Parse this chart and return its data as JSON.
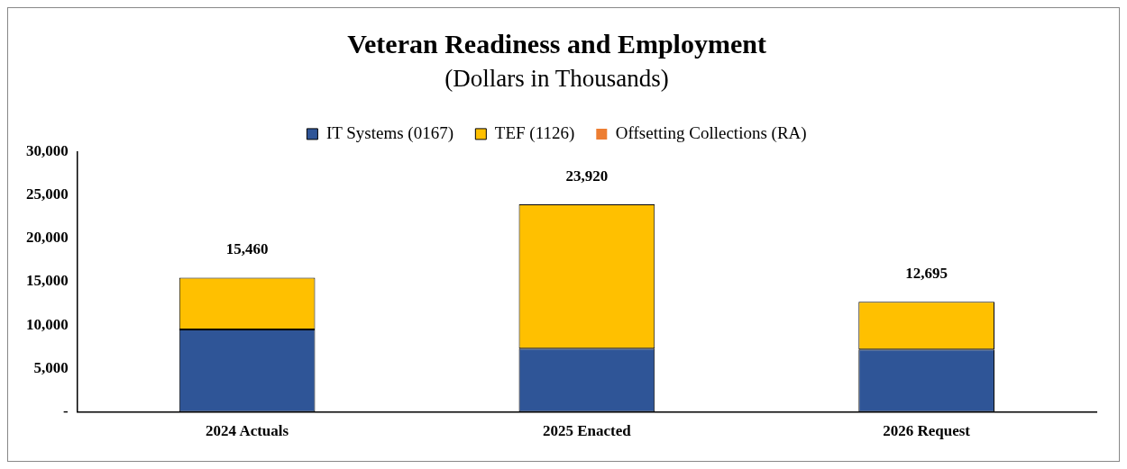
{
  "chart_data": {
    "type": "bar",
    "title": "Veteran Readiness and Employment",
    "subtitle": "(Dollars in Thousands)",
    "categories": [
      "2024 Actuals",
      "2025 Enacted",
      "2026 Request"
    ],
    "series": [
      {
        "name": "IT Systems (0167)",
        "color": "#2f5597",
        "values": [
          9500,
          7300,
          7200
        ]
      },
      {
        "name": "TEF (1126)",
        "color": "#ffc000",
        "values": [
          5960,
          16620,
          5495
        ]
      },
      {
        "name": "Offsetting Collections (RA)",
        "color": "#ed7d31",
        "values": [
          0,
          0,
          0
        ]
      }
    ],
    "stacked": true,
    "ylim": [
      0,
      30000
    ],
    "yticks": [
      {
        "value": 0,
        "label": "-"
      },
      {
        "value": 5000,
        "label": "5,000"
      },
      {
        "value": 10000,
        "label": "10,000"
      },
      {
        "value": 15000,
        "label": "15,000"
      },
      {
        "value": 20000,
        "label": "20,000"
      },
      {
        "value": 25000,
        "label": "25,000"
      },
      {
        "value": 30000,
        "label": "30,000"
      }
    ],
    "totals": [
      "15,460",
      "23,920",
      "12,695"
    ],
    "grid": false,
    "legend": "top"
  }
}
